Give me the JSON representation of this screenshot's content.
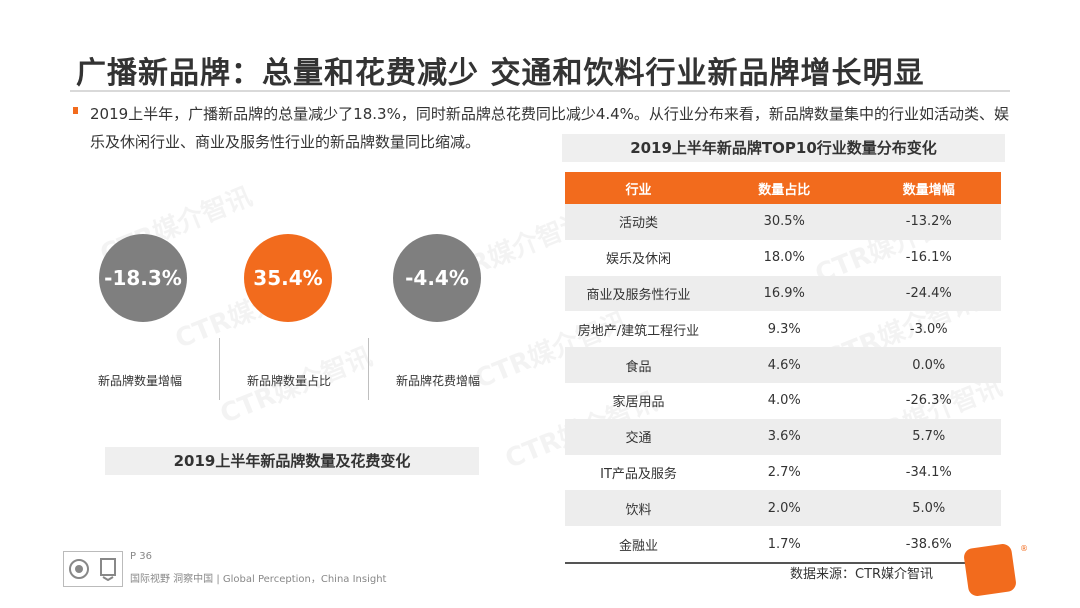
{
  "slide": {
    "title": "广播新品牌：总量和花费减少 交通和饮料行业新品牌增长明显",
    "intro": "2019上半年，广播新品牌的总量减少了18.3%，同时新品牌总花费同比减少4.4%。从行业分布来看，新品牌数量集中的行业如活动类、娱乐及休闲行业、商业及服务性行业的新品牌数量同比缩减。",
    "watermark": "CTR媒介智讯"
  },
  "kpis": [
    {
      "value": "-18.3%",
      "label": "新品牌数量增幅",
      "color": "#7f7f7f"
    },
    {
      "value": "35.4%",
      "label": "新品牌数量占比",
      "color": "#f26b1d"
    },
    {
      "value": "-4.4%",
      "label": "新品牌花费增幅",
      "color": "#7f7f7f"
    }
  ],
  "left_caption": "2019上半年新品牌数量及花费变化",
  "table": {
    "caption": "2019上半年新品牌TOP10行业数量分布变化",
    "headers": [
      "行业",
      "数量占比",
      "数量增幅"
    ],
    "rows": [
      [
        "活动类",
        "30.5%",
        "-13.2%"
      ],
      [
        "娱乐及休闲",
        "18.0%",
        "-16.1%"
      ],
      [
        "商业及服务性行业",
        "16.9%",
        "-24.4%"
      ],
      [
        "房地产/建筑工程行业",
        "9.3%",
        "-3.0%"
      ],
      [
        "食品",
        "4.6%",
        "0.0%"
      ],
      [
        "家居用品",
        "4.0%",
        "-26.3%"
      ],
      [
        "交通",
        "3.6%",
        "5.7%"
      ],
      [
        "IT产品及服务",
        "2.7%",
        "-34.1%"
      ],
      [
        "饮料",
        "2.0%",
        "5.0%"
      ],
      [
        "金融业",
        "1.7%",
        "-38.6%"
      ]
    ]
  },
  "source": "数据来源：CTR媒介智讯",
  "footer": {
    "page": "P 36",
    "text": "国际视野 洞察中国 | Global Perception，China Insight"
  },
  "colors": {
    "accent": "#f26b1d",
    "grey": "#7f7f7f"
  }
}
